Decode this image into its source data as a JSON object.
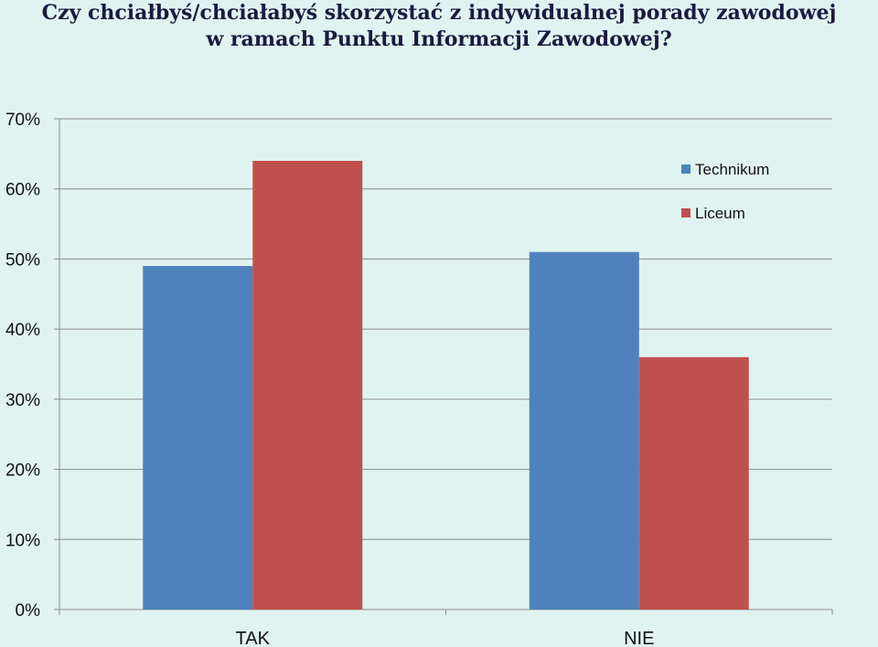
{
  "page": {
    "title_line1": "Czy chciałbyś/chciałabyś skorzystać z indywidualnej porady zawodowej",
    "title_line2": "w ramach Punktu Informacji Zawodowej?",
    "background": "#dff4f1"
  },
  "chart_data": {
    "type": "bar",
    "title": "Czy chciałbyś/chciałabyś skorzystać z indywidualnej porady zawodowej w ramach Punktu Informacji Zawodowej?",
    "xlabel": "",
    "ylabel": "",
    "categories": [
      "TAK",
      "NIE"
    ],
    "series": [
      {
        "name": "Technikum",
        "values": [
          49,
          51
        ],
        "color": "#4f81bd"
      },
      {
        "name": "Liceum",
        "values": [
          64,
          36
        ],
        "color": "#c0504d"
      }
    ],
    "ylim": [
      0,
      70
    ],
    "yticks": [
      0,
      10,
      20,
      30,
      40,
      50,
      60,
      70
    ],
    "ytick_labels": [
      "0%",
      "10%",
      "20%",
      "30%",
      "40%",
      "50%",
      "60%",
      "70%"
    ],
    "grid": true,
    "legend": "top-right"
  }
}
